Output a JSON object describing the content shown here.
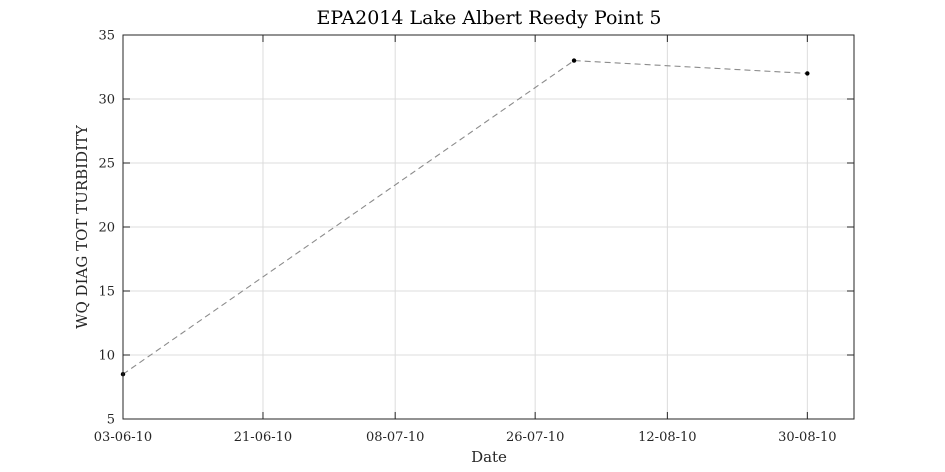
{
  "chart_data": {
    "type": "line",
    "title": "EPA2014 Lake Albert Reedy Point 5",
    "xlabel": "Date",
    "ylabel": "WQ DIAG TOT TURBIDITY",
    "x_tick_labels": [
      "03-06-10",
      "21-06-10",
      "08-07-10",
      "26-07-10",
      "12-08-10",
      "30-08-10"
    ],
    "y_tick_labels": [
      "5",
      "10",
      "15",
      "20",
      "25",
      "30",
      "35"
    ],
    "x_ticks": [
      "2010-06-03",
      "2010-06-21",
      "2010-07-08",
      "2010-07-26",
      "2010-08-12",
      "2010-08-30"
    ],
    "y_ticks": [
      5,
      10,
      15,
      20,
      25,
      30,
      35
    ],
    "xlim": [
      "2010-06-03",
      "2010-09-05"
    ],
    "ylim": [
      5,
      35
    ],
    "grid": true,
    "series": [
      {
        "x": [
          "2010-06-03",
          "2010-07-31",
          "2010-08-30"
        ],
        "y": [
          8.5,
          33,
          32
        ],
        "line_style": "dashed",
        "line_color": "#8c8c8c",
        "marker_color": "#000000"
      }
    ]
  }
}
